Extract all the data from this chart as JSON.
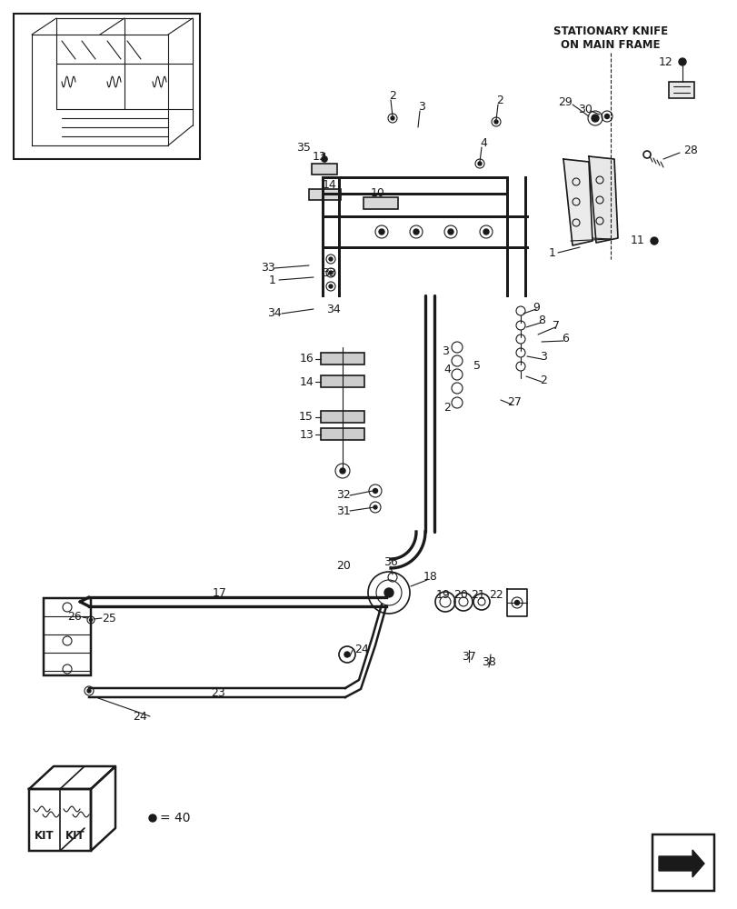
{
  "bg_color": "#ffffff",
  "fig_width": 8.12,
  "fig_height": 10.0,
  "stationary_knife_label": "STATIONARY KNIFE\nON MAIN FRAME",
  "kit_label": "= 40"
}
